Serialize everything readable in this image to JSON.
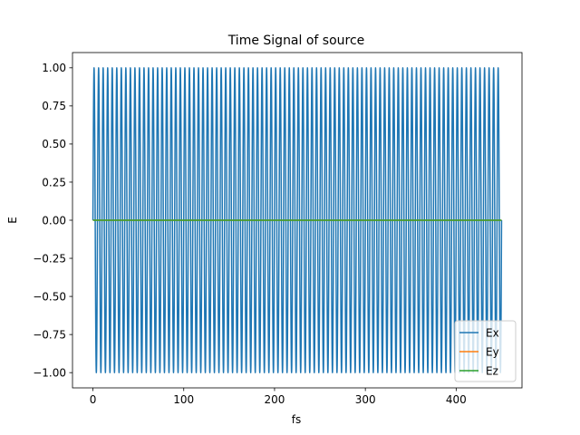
{
  "chart_data": {
    "type": "line",
    "title": "Time Signal of source",
    "xlabel": "fs",
    "ylabel": "E",
    "xlim": [
      -22.5,
      472.5
    ],
    "ylim": [
      -1.1,
      1.1
    ],
    "xticks": [
      0,
      100,
      200,
      300,
      400
    ],
    "yticks": [
      -1.0,
      -0.75,
      -0.5,
      -0.25,
      0.0,
      0.25,
      0.5,
      0.75,
      1.0
    ],
    "xtick_labels": [
      "0",
      "100",
      "200",
      "300",
      "400"
    ],
    "ytick_labels": [
      "−1.00",
      "−0.75",
      "−0.50",
      "−0.25",
      "0.00",
      "0.25",
      "0.50",
      "0.75",
      "1.00"
    ],
    "grid": false,
    "legend_position": "lower-right",
    "series": [
      {
        "name": "Ex",
        "color": "#1f77b4",
        "function": "sine",
        "amplitude": 1.0,
        "period": 5.0,
        "x_start": 0,
        "x_end": 450
      },
      {
        "name": "Ey",
        "color": "#ff7f0e",
        "function": "constant",
        "value": 0.0,
        "x_start": 0,
        "x_end": 450
      },
      {
        "name": "Ez",
        "color": "#2ca02c",
        "function": "constant",
        "value": 0.0,
        "x_start": 0,
        "x_end": 450
      }
    ]
  }
}
